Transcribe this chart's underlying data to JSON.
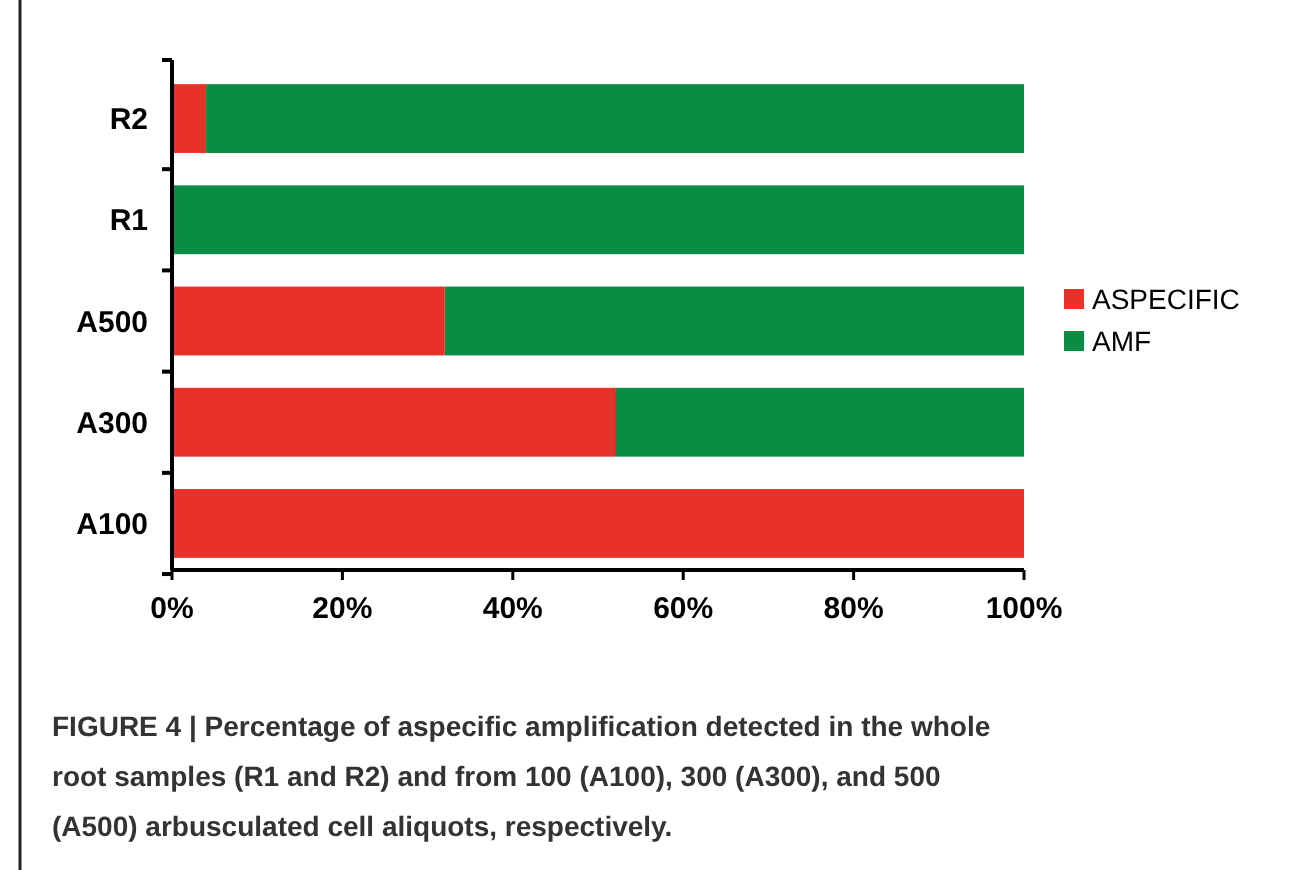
{
  "chart_data": {
    "type": "bar",
    "orientation": "horizontal",
    "stacked": true,
    "categories": [
      "R2",
      "R1",
      "A500",
      "A300",
      "A100"
    ],
    "series": [
      {
        "name": "ASPECIFIC",
        "color": "#e8312a",
        "values": [
          4,
          0,
          32,
          52,
          100
        ]
      },
      {
        "name": "AMF",
        "color": "#0a8c44",
        "values": [
          96,
          100,
          68,
          48,
          0
        ]
      }
    ],
    "xlim": [
      0,
      100
    ],
    "xticks": [
      {
        "value": 0,
        "label": "0%"
      },
      {
        "value": 20,
        "label": "20%"
      },
      {
        "value": 40,
        "label": "40%"
      },
      {
        "value": 60,
        "label": "60%"
      },
      {
        "value": 80,
        "label": "80%"
      },
      {
        "value": 100,
        "label": "100%"
      }
    ],
    "grid": false,
    "legend": "right",
    "annotations": [
      "FIGURE 4 | Percentage of aspecific amplification detected in the whole root samples (R1 and R2) and from 100 (A100), 300 (A300), and 500 (A500) arbusculated cell aliquots, respectively."
    ]
  }
}
